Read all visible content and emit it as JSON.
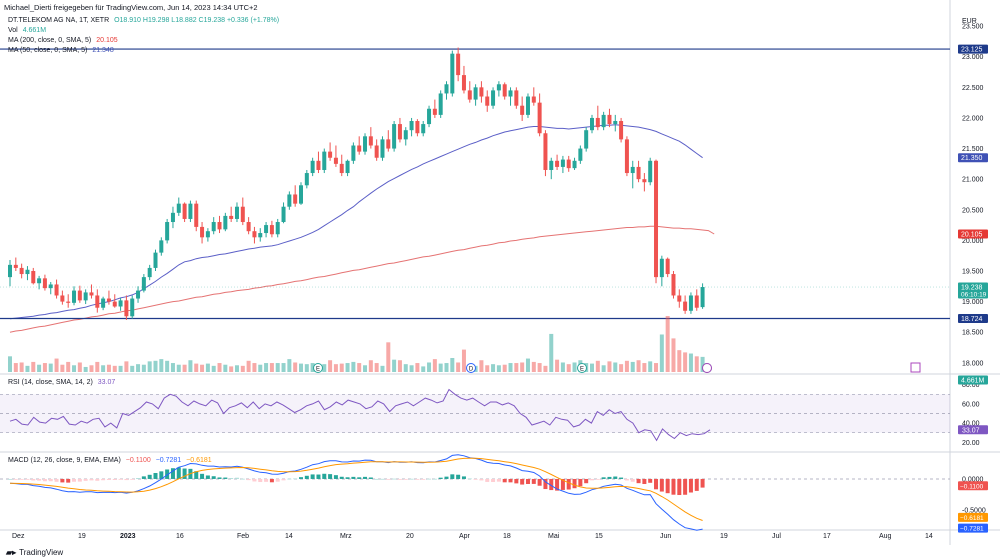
{
  "header": {
    "attribution": "Michael_Dierti freigegeben für TradingView.com, Jun 14, 2023 14:34 UTC+2",
    "currency": "EUR",
    "symbol": "DT.TELEKOM AG NA, 1T, XETR",
    "ohlc": "O18.910 H19.298 L18.882 C19.238 +0.336 (+1.78%)",
    "vol_label": "Vol",
    "vol_value": "4.661M",
    "ma200_label": "MA (200, close, 0, SMA, 5)",
    "ma200_value": "20.105",
    "ma50_label": "MA (50, close, 0, SMA, 5)",
    "ma50_value": "21.348"
  },
  "colors": {
    "up": "#26a69a",
    "down": "#ef5350",
    "ma200": "#e57373",
    "ma50": "#5b5fc7",
    "hline": "#1e3a8a",
    "rsi": "#7e57c2",
    "macd": "#2962ff",
    "signal": "#ff9800"
  },
  "price_axis": {
    "ticks": [
      "23.500",
      "23.000",
      "22.500",
      "22.000",
      "21.500",
      "21.000",
      "20.500",
      "20.000",
      "19.500",
      "19.000",
      "18.500",
      "18.000"
    ],
    "badges": [
      {
        "label": "23.125",
        "price": 23.125,
        "color": "#1e3a8a"
      },
      {
        "label": "21.350",
        "price": 21.35,
        "color": "#3f51b5"
      },
      {
        "label": "20.105",
        "price": 20.105,
        "color": "#e53935"
      },
      {
        "label": "19.238",
        "sub": "06:10:19",
        "price": 19.238,
        "color": "#26a69a"
      },
      {
        "label": "18.724",
        "price": 18.724,
        "color": "#1e3a8a"
      },
      {
        "label": "4.661M",
        "price": 17.72,
        "color": "#26a69a"
      }
    ],
    "hlines": [
      23.125,
      18.724
    ]
  },
  "x_axis": {
    "labels": [
      "Dez",
      "19",
      "2023",
      "16",
      "Feb",
      "14",
      "Mrz",
      "20",
      "Apr",
      "18",
      "Mai",
      "15",
      "Jun",
      "19",
      "Jul",
      "17",
      "Aug",
      "14"
    ]
  },
  "events": [
    "E",
    "D",
    "E",
    "E"
  ],
  "rsi": {
    "legend": "RSI (14, close, SMA, 14, 2)",
    "value": "33.07",
    "ticks": [
      "80.00",
      "60.00",
      "40.00",
      "20.00"
    ],
    "badge": "33.07",
    "badge_color": "#7e57c2",
    "values": [
      42,
      44,
      39,
      38,
      46,
      41,
      40,
      45,
      44,
      47,
      39,
      38,
      42,
      40,
      44,
      45,
      36,
      40,
      35,
      50,
      48,
      52,
      56,
      62,
      60,
      55,
      66,
      70,
      68,
      62,
      58,
      63,
      60,
      58,
      64,
      61,
      50,
      56,
      58,
      61,
      56,
      62,
      55,
      60,
      58,
      62,
      59,
      55,
      51,
      54,
      58,
      60,
      63,
      54,
      57,
      62,
      59,
      64,
      62,
      60,
      55,
      57,
      63,
      60,
      52,
      58,
      60,
      62,
      58,
      62,
      66,
      64,
      61,
      63,
      75,
      70,
      66,
      64,
      66,
      62,
      58,
      62,
      62,
      59,
      61,
      58,
      50,
      46,
      38,
      40,
      42,
      38,
      46,
      44,
      43,
      36,
      38,
      44,
      40,
      52,
      48,
      54,
      50,
      52,
      44,
      40,
      30,
      33,
      32,
      22,
      34,
      28,
      24,
      30,
      27,
      29,
      28,
      29,
      33
    ]
  },
  "macd": {
    "legend": "MACD (12, 26, close, 9, EMA, EMA)",
    "v1": "−0.1100",
    "v2": "−0.7281",
    "v3": "−0.6181",
    "ticks": [
      "0.0000",
      "-0.5000"
    ],
    "badges": [
      {
        "label": "−0.1100",
        "value": -0.11,
        "color": "#ef5350"
      },
      {
        "label": "−0.6181",
        "value": -0.6181,
        "color": "#ff9800"
      },
      {
        "label": "−0.7281",
        "value": -0.7281,
        "color": "#2962ff"
      }
    ]
  },
  "chart_data": {
    "type": "candlestick",
    "title": "DT.TELEKOM AG NA, 1T, XETR",
    "xlabel": "",
    "ylabel": "EUR",
    "ylim": [
      17.85,
      23.6
    ],
    "candles": [
      [
        19.4,
        19.68,
        19.25,
        19.6
      ],
      [
        19.6,
        19.72,
        19.5,
        19.55
      ],
      [
        19.55,
        19.62,
        19.38,
        19.45
      ],
      [
        19.45,
        19.58,
        19.35,
        19.52
      ],
      [
        19.5,
        19.55,
        19.28,
        19.3
      ],
      [
        19.3,
        19.42,
        19.2,
        19.38
      ],
      [
        19.38,
        19.44,
        19.18,
        19.22
      ],
      [
        19.22,
        19.32,
        19.12,
        19.28
      ],
      [
        19.28,
        19.36,
        19.05,
        19.1
      ],
      [
        19.1,
        19.18,
        18.95,
        19.0
      ],
      [
        19.0,
        19.12,
        18.9,
        18.98
      ],
      [
        18.98,
        19.25,
        18.94,
        19.18
      ],
      [
        19.18,
        19.26,
        18.98,
        19.02
      ],
      [
        19.02,
        19.2,
        18.96,
        19.15
      ],
      [
        19.15,
        19.28,
        19.05,
        19.1
      ],
      [
        19.1,
        19.2,
        18.82,
        18.9
      ],
      [
        18.9,
        19.08,
        18.86,
        19.05
      ],
      [
        19.05,
        19.18,
        18.95,
        19.0
      ],
      [
        19.0,
        19.12,
        18.9,
        18.92
      ],
      [
        18.92,
        19.06,
        18.85,
        19.02
      ],
      [
        19.02,
        19.1,
        18.7,
        18.76
      ],
      [
        18.76,
        19.1,
        18.72,
        19.05
      ],
      [
        19.05,
        19.25,
        18.98,
        19.18
      ],
      [
        19.18,
        19.45,
        19.15,
        19.4
      ],
      [
        19.4,
        19.6,
        19.35,
        19.55
      ],
      [
        19.55,
        19.85,
        19.5,
        19.8
      ],
      [
        19.8,
        20.05,
        19.75,
        20.0
      ],
      [
        20.0,
        20.35,
        19.95,
        20.3
      ],
      [
        20.3,
        20.55,
        20.2,
        20.45
      ],
      [
        20.45,
        20.7,
        20.4,
        20.6
      ],
      [
        20.6,
        20.62,
        20.3,
        20.35
      ],
      [
        20.35,
        20.65,
        20.3,
        20.6
      ],
      [
        20.6,
        20.65,
        20.15,
        20.22
      ],
      [
        20.22,
        20.3,
        19.95,
        20.05
      ],
      [
        20.05,
        20.2,
        19.98,
        20.15
      ],
      [
        20.15,
        20.38,
        20.1,
        20.3
      ],
      [
        20.3,
        20.4,
        20.12,
        20.18
      ],
      [
        20.18,
        20.45,
        20.15,
        20.4
      ],
      [
        20.4,
        20.55,
        20.3,
        20.35
      ],
      [
        20.35,
        20.62,
        20.3,
        20.55
      ],
      [
        20.55,
        20.7,
        20.25,
        20.3
      ],
      [
        20.3,
        20.38,
        20.1,
        20.15
      ],
      [
        20.15,
        20.22,
        19.95,
        20.05
      ],
      [
        20.05,
        20.2,
        19.98,
        20.12
      ],
      [
        20.12,
        20.3,
        20.05,
        20.25
      ],
      [
        20.25,
        20.32,
        20.05,
        20.1
      ],
      [
        20.1,
        20.35,
        20.05,
        20.3
      ],
      [
        20.3,
        20.62,
        20.28,
        20.55
      ],
      [
        20.55,
        20.8,
        20.5,
        20.75
      ],
      [
        20.75,
        20.9,
        20.55,
        20.6
      ],
      [
        20.6,
        20.95,
        20.58,
        20.9
      ],
      [
        20.9,
        21.15,
        20.85,
        21.1
      ],
      [
        21.1,
        21.35,
        21.05,
        21.3
      ],
      [
        21.3,
        21.45,
        21.1,
        21.15
      ],
      [
        21.15,
        21.5,
        21.1,
        21.45
      ],
      [
        21.45,
        21.6,
        21.3,
        21.35
      ],
      [
        21.35,
        21.55,
        21.2,
        21.25
      ],
      [
        21.25,
        21.4,
        21.05,
        21.1
      ],
      [
        21.1,
        21.32,
        21.05,
        21.3
      ],
      [
        21.3,
        21.6,
        21.25,
        21.55
      ],
      [
        21.55,
        21.7,
        21.4,
        21.45
      ],
      [
        21.45,
        21.75,
        21.4,
        21.7
      ],
      [
        21.7,
        21.85,
        21.5,
        21.55
      ],
      [
        21.55,
        21.65,
        21.3,
        21.35
      ],
      [
        21.35,
        21.7,
        21.3,
        21.65
      ],
      [
        21.65,
        21.8,
        21.45,
        21.5
      ],
      [
        21.5,
        21.95,
        21.45,
        21.9
      ],
      [
        21.9,
        22.0,
        21.6,
        21.65
      ],
      [
        21.65,
        21.85,
        21.55,
        21.8
      ],
      [
        21.8,
        22.0,
        21.7,
        21.95
      ],
      [
        21.95,
        21.98,
        21.7,
        21.75
      ],
      [
        21.75,
        21.95,
        21.7,
        21.9
      ],
      [
        21.9,
        22.2,
        21.85,
        22.15
      ],
      [
        22.15,
        22.3,
        22.0,
        22.05
      ],
      [
        22.05,
        22.45,
        22.0,
        22.4
      ],
      [
        22.4,
        22.6,
        22.3,
        22.55
      ],
      [
        22.4,
        23.1,
        22.35,
        23.05
      ],
      [
        23.05,
        23.15,
        22.6,
        22.7
      ],
      [
        22.7,
        22.85,
        22.4,
        22.45
      ],
      [
        22.45,
        22.6,
        22.25,
        22.3
      ],
      [
        22.3,
        22.55,
        22.2,
        22.5
      ],
      [
        22.5,
        22.6,
        22.25,
        22.35
      ],
      [
        22.35,
        22.45,
        22.1,
        22.2
      ],
      [
        22.2,
        22.5,
        22.15,
        22.45
      ],
      [
        22.45,
        22.6,
        22.35,
        22.55
      ],
      [
        22.55,
        22.58,
        22.3,
        22.35
      ],
      [
        22.35,
        22.5,
        22.2,
        22.45
      ],
      [
        22.45,
        22.5,
        22.15,
        22.2
      ],
      [
        22.2,
        22.35,
        21.95,
        22.05
      ],
      [
        22.05,
        22.4,
        22.0,
        22.35
      ],
      [
        22.35,
        22.5,
        22.2,
        22.25
      ],
      [
        22.25,
        22.4,
        21.7,
        21.75
      ],
      [
        21.75,
        21.8,
        21.05,
        21.15
      ],
      [
        21.15,
        21.35,
        21.0,
        21.3
      ],
      [
        21.3,
        21.4,
        21.15,
        21.2
      ],
      [
        21.2,
        21.38,
        21.1,
        21.32
      ],
      [
        21.32,
        21.38,
        21.12,
        21.18
      ],
      [
        21.18,
        21.35,
        21.15,
        21.3
      ],
      [
        21.3,
        21.55,
        21.25,
        21.5
      ],
      [
        21.5,
        21.85,
        21.45,
        21.8
      ],
      [
        21.8,
        22.05,
        21.75,
        22.0
      ],
      [
        22.0,
        22.2,
        21.8,
        21.85
      ],
      [
        21.85,
        22.1,
        21.8,
        22.05
      ],
      [
        22.05,
        22.15,
        21.85,
        21.9
      ],
      [
        21.9,
        22.05,
        21.78,
        21.95
      ],
      [
        21.95,
        22.0,
        21.6,
        21.65
      ],
      [
        21.65,
        21.7,
        21.05,
        21.1
      ],
      [
        21.1,
        21.3,
        20.85,
        21.2
      ],
      [
        21.2,
        21.3,
        20.95,
        21.0
      ],
      [
        21.0,
        21.1,
        20.8,
        20.95
      ],
      [
        20.95,
        21.35,
        20.9,
        21.3
      ],
      [
        21.3,
        21.32,
        19.3,
        19.4
      ],
      [
        19.4,
        19.75,
        19.25,
        19.7
      ],
      [
        19.7,
        19.72,
        19.4,
        19.45
      ],
      [
        19.45,
        19.5,
        19.05,
        19.1
      ],
      [
        19.1,
        19.2,
        18.9,
        19.0
      ],
      [
        19.0,
        19.1,
        18.8,
        18.85
      ],
      [
        18.85,
        19.15,
        18.8,
        19.1
      ],
      [
        19.1,
        19.2,
        18.85,
        18.9
      ],
      [
        18.91,
        19.298,
        18.882,
        19.238
      ]
    ],
    "volume": [
      28,
      16,
      17,
      11,
      18,
      13,
      16,
      15,
      24,
      13,
      18,
      12,
      17,
      9,
      12,
      18,
      12,
      13,
      11,
      11,
      19,
      11,
      14,
      13,
      19,
      20,
      23,
      20,
      16,
      13,
      13,
      21,
      15,
      13,
      15,
      11,
      16,
      13,
      10,
      12,
      11,
      20,
      16,
      13,
      16,
      16,
      16,
      16,
      23,
      17,
      15,
      14,
      16,
      14,
      14,
      21,
      14,
      15,
      16,
      18,
      16,
      12,
      21,
      16,
      11,
      53,
      22,
      21,
      14,
      12,
      16,
      10,
      17,
      23,
      15,
      16,
      25,
      17,
      40,
      14,
      11,
      21,
      12,
      14,
      12,
      13,
      16,
      16,
      17,
      24,
      18,
      16,
      11,
      68,
      22,
      17,
      14,
      17,
      21,
      16,
      15,
      20,
      12,
      19,
      17,
      14,
      20,
      18,
      21,
      16,
      19,
      16,
      67,
      100,
      60,
      39,
      35,
      33,
      28,
      27
    ],
    "ma50": [
      18.72,
      18.73,
      18.74,
      18.75,
      18.76,
      18.78,
      18.79,
      18.81,
      18.82,
      18.84,
      18.86,
      18.87,
      18.89,
      18.91,
      18.94,
      18.96,
      18.98,
      19.0,
      19.03,
      19.06,
      19.08,
      19.11,
      19.15,
      19.21,
      19.27,
      19.33,
      19.4,
      19.46,
      19.53,
      19.6,
      19.65,
      19.67,
      19.7,
      19.72,
      19.73,
      19.75,
      19.77,
      19.78,
      19.8,
      19.82,
      19.84,
      19.86,
      19.87,
      19.89,
      19.9,
      19.91,
      19.93,
      19.96,
      19.99,
      20.02,
      20.05,
      20.09,
      20.13,
      20.18,
      20.24,
      20.3,
      20.36,
      20.42,
      20.49,
      20.55,
      20.63,
      20.7,
      20.77,
      20.84,
      20.9,
      20.96,
      21.01,
      21.06,
      21.11,
      21.16,
      21.2,
      21.25,
      21.29,
      21.33,
      21.37,
      21.41,
      21.45,
      21.49,
      21.53,
      21.57,
      21.6,
      21.64,
      21.67,
      21.71,
      21.74,
      21.77,
      21.79,
      21.81,
      21.83,
      21.85,
      21.86,
      21.86,
      21.85,
      21.84,
      21.83,
      21.83,
      21.82,
      21.83,
      21.84,
      21.85,
      21.86,
      21.87,
      21.88,
      21.88,
      21.89,
      21.88,
      21.87,
      21.86,
      21.85,
      21.83,
      21.81,
      21.78,
      21.74,
      21.7,
      21.66,
      21.62,
      21.56,
      21.49,
      21.42,
      21.35
    ],
    "ma200": [
      18.5,
      18.52,
      18.53,
      18.55,
      18.57,
      18.59,
      18.6,
      18.62,
      18.64,
      18.66,
      18.68,
      18.7,
      18.71,
      18.73,
      18.75,
      18.76,
      18.78,
      18.8,
      18.81,
      18.83,
      18.85,
      18.86,
      18.88,
      18.9,
      18.92,
      18.94,
      18.96,
      18.98,
      19.0,
      19.01,
      19.03,
      19.05,
      19.07,
      19.08,
      19.1,
      19.12,
      19.13,
      19.15,
      19.16,
      19.18,
      19.19,
      19.2,
      19.22,
      19.23,
      19.25,
      19.26,
      19.28,
      19.29,
      19.31,
      19.33,
      19.34,
      19.36,
      19.38,
      19.4,
      19.41,
      19.43,
      19.45,
      19.47,
      19.49,
      19.51,
      19.52,
      19.54,
      19.56,
      19.58,
      19.6,
      19.62,
      19.63,
      19.65,
      19.67,
      19.69,
      19.71,
      19.73,
      19.74,
      19.76,
      19.78,
      19.8,
      19.82,
      19.84,
      19.85,
      19.87,
      19.89,
      19.91,
      19.92,
      19.94,
      19.96,
      19.97,
      19.99,
      20.0,
      20.02,
      20.03,
      20.04,
      20.06,
      20.07,
      20.08,
      20.09,
      20.1,
      20.11,
      20.12,
      20.13,
      20.14,
      20.15,
      20.16,
      20.17,
      20.18,
      20.19,
      20.2,
      20.21,
      20.21,
      20.22,
      20.22,
      20.23,
      20.23,
      20.22,
      20.21,
      20.2,
      20.2,
      20.19,
      20.19,
      20.18,
      20.17,
      20.16,
      20.105
    ]
  }
}
